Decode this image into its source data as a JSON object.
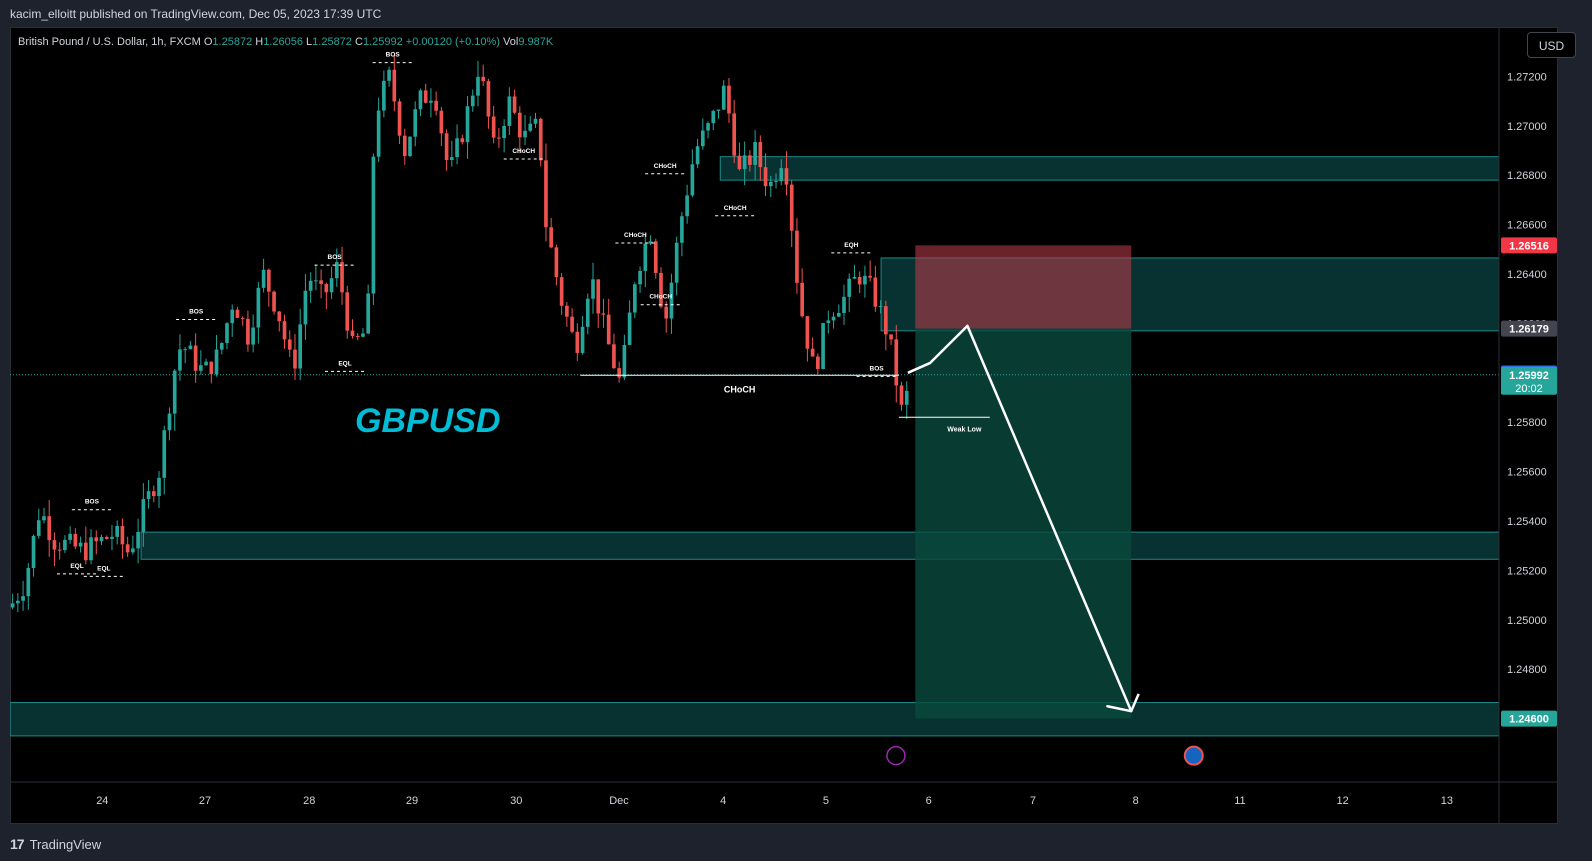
{
  "header": {
    "publish_line": "kacim_elloitt published on TradingView.com, Dec 05, 2023 17:39 UTC"
  },
  "symbol": {
    "name": "British Pound / U.S. Dollar, 1h, FXCM",
    "open_label": "O",
    "open": "1.25872",
    "high_label": "H",
    "high": "1.26056",
    "low_label": "L",
    "low": "1.25872",
    "close_label": "C",
    "close": "1.25992",
    "change": "+0.00120 (+0.10%)",
    "vol_label": "Vol",
    "vol": "9.987K"
  },
  "currency_button": "USD",
  "footer": {
    "brand": "TradingView",
    "logo": "17"
  },
  "watermark": "GBPUSD",
  "colors": {
    "bull": "#26a69a",
    "bear": "#ef5350",
    "zone": "#0e5a5a",
    "sl": "#b23a48",
    "tp": "#0a4a3d",
    "label_red": "#f23645",
    "label_blue": "#2962ff",
    "label_green": "#26a69a",
    "label_gray": "#434651"
  },
  "chart_data": {
    "type": "candlestick",
    "symbol": "GBPUSD",
    "timeframe": "1h",
    "ylim": [
      1.244,
      1.274
    ],
    "y_ticks": [
      "1.27200",
      "1.27000",
      "1.26800",
      "1.26600",
      "1.26400",
      "1.26200",
      "1.26000",
      "1.25800",
      "1.25600",
      "1.25400",
      "1.25200",
      "1.25000",
      "1.24800",
      "1.24600"
    ],
    "x_ticks": [
      {
        "label": "24",
        "x": 0.062
      },
      {
        "label": "27",
        "x": 0.131
      },
      {
        "label": "28",
        "x": 0.201
      },
      {
        "label": "29",
        "x": 0.27
      },
      {
        "label": "30",
        "x": 0.34
      },
      {
        "label": "Dec",
        "x": 0.409
      },
      {
        "label": "4",
        "x": 0.479
      },
      {
        "label": "5",
        "x": 0.548
      },
      {
        "label": "6",
        "x": 0.617
      },
      {
        "label": "7",
        "x": 0.687
      },
      {
        "label": "8",
        "x": 0.756
      },
      {
        "label": "11",
        "x": 0.826
      },
      {
        "label": "12",
        "x": 0.895
      },
      {
        "label": "13",
        "x": 0.965
      }
    ],
    "price_path": [
      [
        0,
        1.2505
      ],
      [
        0.01,
        1.2515
      ],
      [
        0.02,
        1.2545
      ],
      [
        0.03,
        1.2532
      ],
      [
        0.05,
        1.2528
      ],
      [
        0.07,
        1.2535
      ],
      [
        0.08,
        1.2527
      ],
      [
        0.09,
        1.2545
      ],
      [
        0.1,
        1.256
      ],
      [
        0.11,
        1.26
      ],
      [
        0.115,
        1.2612
      ],
      [
        0.13,
        1.26
      ],
      [
        0.14,
        1.2607
      ],
      [
        0.15,
        1.263
      ],
      [
        0.16,
        1.2615
      ],
      [
        0.17,
        1.264
      ],
      [
        0.18,
        1.2625
      ],
      [
        0.19,
        1.26
      ],
      [
        0.2,
        1.264
      ],
      [
        0.21,
        1.263
      ],
      [
        0.22,
        1.2643
      ],
      [
        0.23,
        1.261
      ],
      [
        0.24,
        1.2618
      ],
      [
        0.245,
        1.2705
      ],
      [
        0.255,
        1.272
      ],
      [
        0.265,
        1.269
      ],
      [
        0.275,
        1.271
      ],
      [
        0.285,
        1.2715
      ],
      [
        0.295,
        1.268
      ],
      [
        0.305,
        1.27
      ],
      [
        0.315,
        1.2725
      ],
      [
        0.325,
        1.269
      ],
      [
        0.335,
        1.271
      ],
      [
        0.345,
        1.2695
      ],
      [
        0.355,
        1.27
      ],
      [
        0.36,
        1.266
      ],
      [
        0.37,
        1.263
      ],
      [
        0.38,
        1.261
      ],
      [
        0.39,
        1.264
      ],
      [
        0.4,
        1.2615
      ],
      [
        0.41,
        1.2595
      ],
      [
        0.42,
        1.264
      ],
      [
        0.43,
        1.2658
      ],
      [
        0.44,
        1.262
      ],
      [
        0.45,
        1.266
      ],
      [
        0.46,
        1.269
      ],
      [
        0.47,
        1.27
      ],
      [
        0.48,
        1.2715
      ],
      [
        0.49,
        1.268
      ],
      [
        0.5,
        1.269
      ],
      [
        0.51,
        1.2675
      ],
      [
        0.52,
        1.269
      ],
      [
        0.53,
        1.263
      ],
      [
        0.54,
        1.26
      ],
      [
        0.55,
        1.2625
      ],
      [
        0.56,
        1.263
      ],
      [
        0.57,
        1.264
      ],
      [
        0.58,
        1.2632
      ],
      [
        0.59,
        1.2615
      ],
      [
        0.6,
        1.258
      ],
      [
        0.604,
        1.2599
      ]
    ],
    "zones": [
      {
        "top": 1.26875,
        "bottom": 1.2678,
        "x0": 0.477,
        "x1": 1.0
      },
      {
        "top": 1.26465,
        "bottom": 1.2617,
        "x0": 0.585,
        "x1": 1.0
      },
      {
        "top": 1.25355,
        "bottom": 1.25245,
        "x0": 0.088,
        "x1": 1.0
      },
      {
        "top": 1.24665,
        "bottom": 1.2453,
        "x0": 0.0,
        "x1": 1.0
      }
    ],
    "position": {
      "type": "short",
      "x0": 0.608,
      "x1": 0.753,
      "stop": 1.26516,
      "entry": 1.26179,
      "target": 1.246
    },
    "projection_path": [
      [
        0.603,
        1.26
      ],
      [
        0.618,
        1.2604
      ],
      [
        0.643,
        1.2619
      ],
      [
        0.753,
        1.2463
      ],
      [
        0.737,
        1.2465
      ],
      [
        0.753,
        1.2463
      ],
      [
        0.758,
        1.247
      ]
    ],
    "levels": [
      {
        "price": 1.2599,
        "x0": 0.383,
        "x1": 0.597,
        "label": "CHoCH"
      },
      {
        "price": 1.2582,
        "x0": 0.597,
        "x1": 0.658,
        "label": "Weak Low"
      }
    ],
    "structure_labels": [
      {
        "text": "BOS",
        "x": 0.055,
        "price": 1.2547
      },
      {
        "text": "EQL",
        "x": 0.045,
        "price": 1.2521
      },
      {
        "text": "EQL",
        "x": 0.063,
        "price": 1.252
      },
      {
        "text": "BOS",
        "x": 0.125,
        "price": 1.2624
      },
      {
        "text": "BOS",
        "x": 0.218,
        "price": 1.2646
      },
      {
        "text": "EQL",
        "x": 0.225,
        "price": 1.2603
      },
      {
        "text": "BOS",
        "x": 0.257,
        "price": 1.2728
      },
      {
        "text": "CHoCH",
        "x": 0.345,
        "price": 1.2689
      },
      {
        "text": "CHoCH",
        "x": 0.44,
        "price": 1.2683
      },
      {
        "text": "CHoCH",
        "x": 0.42,
        "price": 1.2655
      },
      {
        "text": "CHoCH",
        "x": 0.437,
        "price": 1.263
      },
      {
        "text": "CHoCH",
        "x": 0.487,
        "price": 1.2666
      },
      {
        "text": "EQH",
        "x": 0.565,
        "price": 1.2651
      },
      {
        "text": "BOS",
        "x": 0.582,
        "price": 1.2601
      }
    ],
    "price_labels": [
      {
        "value": "1.26516",
        "color": "red"
      },
      {
        "value": "1.26179",
        "color": "gray"
      },
      {
        "value": "1.25997",
        "color": "blue"
      },
      {
        "value": "1.25992",
        "color": "green",
        "sub": "20:02"
      },
      {
        "value": "1.24600",
        "color": "green"
      }
    ]
  }
}
